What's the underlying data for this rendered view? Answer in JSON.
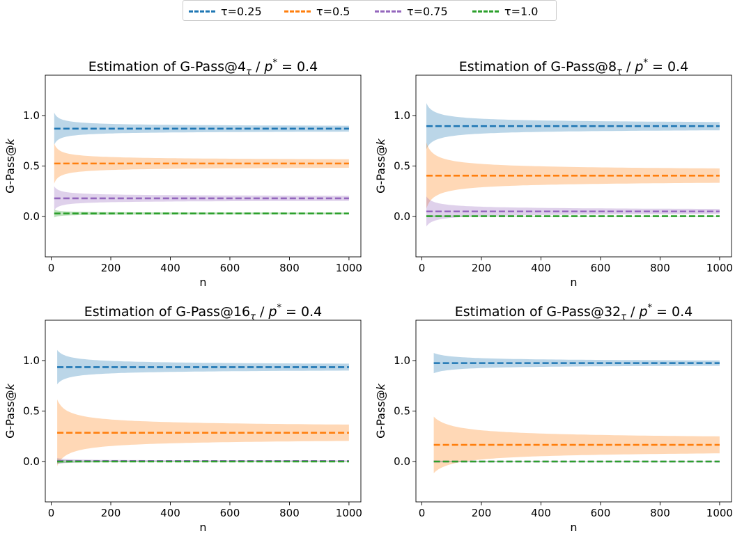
{
  "legend": {
    "entries": [
      {
        "label": "τ=0.25",
        "color": "#1f77b4"
      },
      {
        "label": "τ=0.5",
        "color": "#ff7f0e"
      },
      {
        "label": "τ=0.75",
        "color": "#9467bd"
      },
      {
        "label": "τ=1.0",
        "color": "#2ca02c"
      }
    ]
  },
  "chart_data": [
    {
      "type": "line",
      "title": {
        "prefix": "Estimation of G-Pass@",
        "k": "4",
        "sub": "τ",
        "sep": " / ",
        "p": "p",
        "sup": "*",
        "eq": " = 0.4"
      },
      "xlabel": "n",
      "ylabel": {
        "main": "G-Pass@",
        "italic": "k"
      },
      "xlim": [
        -20,
        1040
      ],
      "ylim": [
        -0.4,
        1.4
      ],
      "xticks": [
        "0",
        "200",
        "400",
        "600",
        "800",
        "1000"
      ],
      "yticks": [
        "0.0",
        "0.5",
        "1.0"
      ],
      "x_range": [
        10,
        1000
      ],
      "series": [
        {
          "name": "τ=0.25",
          "color": "#1f77b4",
          "value": 0.87,
          "band_start": 0.16,
          "band_end": 0.015
        },
        {
          "name": "τ=0.5",
          "color": "#ff7f0e",
          "value": 0.525,
          "band_start": 0.2,
          "band_end": 0.025
        },
        {
          "name": "τ=0.75",
          "color": "#9467bd",
          "value": 0.18,
          "band_start": 0.12,
          "band_end": 0.015
        },
        {
          "name": "τ=1.0",
          "color": "#2ca02c",
          "value": 0.03,
          "band_start": 0.04,
          "band_end": 0.005
        }
      ]
    },
    {
      "type": "line",
      "title": {
        "prefix": "Estimation of G-Pass@",
        "k": "8",
        "sub": "τ",
        "sep": " / ",
        "p": "p",
        "sup": "*",
        "eq": " = 0.4"
      },
      "xlabel": "n",
      "ylabel": {
        "main": "G-Pass@",
        "italic": "k"
      },
      "xlim": [
        -20,
        1040
      ],
      "ylim": [
        -0.4,
        1.4
      ],
      "xticks": [
        "0",
        "200",
        "400",
        "600",
        "800",
        "1000"
      ],
      "yticks": [
        "0.0",
        "0.5",
        "1.0"
      ],
      "x_range": [
        15,
        1000
      ],
      "series": [
        {
          "name": "τ=0.25",
          "color": "#1f77b4",
          "value": 0.895,
          "band_start": 0.23,
          "band_end": 0.015
        },
        {
          "name": "τ=0.5",
          "color": "#ff7f0e",
          "value": 0.405,
          "band_start": 0.33,
          "band_end": 0.035
        },
        {
          "name": "τ=0.75",
          "color": "#9467bd",
          "value": 0.05,
          "band_start": 0.15,
          "band_end": 0.008
        },
        {
          "name": "τ=1.0",
          "color": "#2ca02c",
          "value": 0.003,
          "band_start": 0.01,
          "band_end": 0.002
        }
      ]
    },
    {
      "type": "line",
      "title": {
        "prefix": "Estimation of G-Pass@",
        "k": "16",
        "sub": "τ",
        "sep": " / ",
        "p": "p",
        "sup": "*",
        "eq": " = 0.4"
      },
      "xlabel": "n",
      "ylabel": {
        "main": "G-Pass@",
        "italic": "k"
      },
      "xlim": [
        -20,
        1040
      ],
      "ylim": [
        -0.4,
        1.4
      ],
      "xticks": [
        "0",
        "200",
        "400",
        "600",
        "800",
        "1000"
      ],
      "yticks": [
        "0.0",
        "0.5",
        "1.0"
      ],
      "x_range": [
        20,
        1000
      ],
      "series": [
        {
          "name": "τ=0.25",
          "color": "#1f77b4",
          "value": 0.935,
          "band_start": 0.17,
          "band_end": 0.012
        },
        {
          "name": "τ=0.5",
          "color": "#ff7f0e",
          "value": 0.285,
          "band_start": 0.33,
          "band_end": 0.04
        },
        {
          "name": "τ=0.75",
          "color": "#9467bd",
          "value": 0.005,
          "band_start": 0.03,
          "band_end": 0.002
        },
        {
          "name": "τ=1.0",
          "color": "#2ca02c",
          "value": 0.0,
          "band_start": 0.02,
          "band_end": 0.001
        }
      ]
    },
    {
      "type": "line",
      "title": {
        "prefix": "Estimation of G-Pass@",
        "k": "32",
        "sub": "τ",
        "sep": " / ",
        "p": "p",
        "sup": "*",
        "eq": " = 0.4"
      },
      "xlabel": "n",
      "ylabel": {
        "main": "G-Pass@",
        "italic": "k"
      },
      "xlim": [
        -20,
        1040
      ],
      "ylim": [
        -0.4,
        1.4
      ],
      "xticks": [
        "0",
        "200",
        "400",
        "600",
        "800",
        "1000"
      ],
      "yticks": [
        "0.0",
        "0.5",
        "1.0"
      ],
      "x_range": [
        40,
        1000
      ],
      "series": [
        {
          "name": "τ=0.25",
          "color": "#1f77b4",
          "value": 0.975,
          "band_start": 0.1,
          "band_end": 0.008
        },
        {
          "name": "τ=0.5",
          "color": "#ff7f0e",
          "value": 0.165,
          "band_start": 0.28,
          "band_end": 0.035
        },
        {
          "name": "τ=0.75",
          "color": "#9467bd",
          "value": 0.0,
          "band_start": 0.01,
          "band_end": 0.001
        },
        {
          "name": "τ=1.0",
          "color": "#2ca02c",
          "value": 0.0,
          "band_start": 0.005,
          "band_end": 0.001
        }
      ]
    }
  ]
}
